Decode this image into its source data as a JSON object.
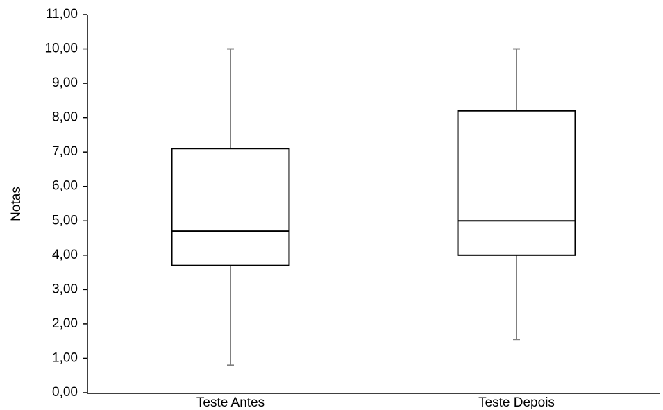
{
  "chart_data": {
    "type": "box",
    "ylabel": "Notas",
    "categories": [
      "Teste Antes",
      "Teste Depois"
    ],
    "boxes": [
      {
        "min": 0.8,
        "q1": 3.7,
        "median": 4.7,
        "q3": 7.1,
        "max": 10
      },
      {
        "min": 1.55,
        "q1": 4.0,
        "median": 5.0,
        "q3": 8.2,
        "max": 10
      }
    ],
    "box_color": "#000000",
    "whisker_color": "#808080",
    "ylim": [
      0,
      11
    ],
    "yticks": [
      {
        "value": 0,
        "label": "0,00"
      },
      {
        "value": 1,
        "label": "1,00"
      },
      {
        "value": 2,
        "label": "2,00"
      },
      {
        "value": 3,
        "label": "3,00"
      },
      {
        "value": 4,
        "label": "4,00"
      },
      {
        "value": 5,
        "label": "5,00"
      },
      {
        "value": 6,
        "label": "6,00"
      },
      {
        "value": 7,
        "label": "7,00"
      },
      {
        "value": 8,
        "label": "8,00"
      },
      {
        "value": 9,
        "label": "9,00"
      },
      {
        "value": 10,
        "label": "10,00"
      },
      {
        "value": 11,
        "label": "11,00"
      }
    ],
    "grid": false
  }
}
